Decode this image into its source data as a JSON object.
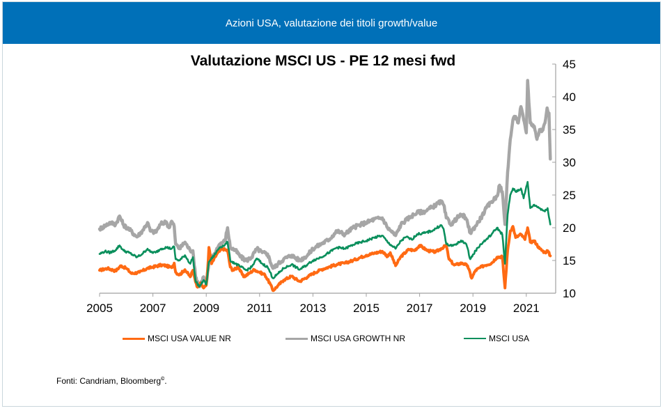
{
  "banner": {
    "title": "Azioni USA, valutazione dei titoli growth/value"
  },
  "source": {
    "text": "Fonti: Candriam, Bloomberg",
    "mark": "©",
    "suffix": "."
  },
  "chart_data": {
    "type": "line",
    "title": "Valutazione MSCI US - PE 12 mesi fwd",
    "xlabel": "",
    "ylabel": "",
    "xlim": [
      2005,
      2021.9
    ],
    "ylim": [
      10,
      45
    ],
    "x_ticks": [
      2005,
      2007,
      2009,
      2011,
      2013,
      2015,
      2017,
      2019,
      2021
    ],
    "y_ticks": [
      10,
      15,
      20,
      25,
      30,
      35,
      40,
      45
    ],
    "y_axis_side": "right",
    "grid": false,
    "legend_position": "bottom",
    "series": [
      {
        "name": "MSCI USA VALUE NR",
        "color": "#ff6a13",
        "points": [
          [
            2005.0,
            13.5
          ],
          [
            2005.3,
            13.8
          ],
          [
            2005.6,
            13.4
          ],
          [
            2005.8,
            14.2
          ],
          [
            2006.0,
            13.8
          ],
          [
            2006.2,
            13.0
          ],
          [
            2006.5,
            13.2
          ],
          [
            2006.8,
            13.8
          ],
          [
            2007.0,
            14.0
          ],
          [
            2007.3,
            14.3
          ],
          [
            2007.5,
            14.2
          ],
          [
            2007.7,
            13.9
          ],
          [
            2007.8,
            14.6
          ],
          [
            2007.85,
            13.2
          ],
          [
            2008.0,
            12.8
          ],
          [
            2008.2,
            13.6
          ],
          [
            2008.4,
            12.5
          ],
          [
            2008.5,
            13.5
          ],
          [
            2008.65,
            11.0
          ],
          [
            2008.8,
            11.5
          ],
          [
            2008.9,
            10.8
          ],
          [
            2009.0,
            11.2
          ],
          [
            2009.05,
            13.5
          ],
          [
            2009.1,
            17.0
          ],
          [
            2009.2,
            14.5
          ],
          [
            2009.4,
            16.0
          ],
          [
            2009.6,
            16.8
          ],
          [
            2009.8,
            16.5
          ],
          [
            2009.9,
            14.0
          ],
          [
            2010.0,
            13.5
          ],
          [
            2010.2,
            14.0
          ],
          [
            2010.4,
            12.5
          ],
          [
            2010.6,
            13.0
          ],
          [
            2010.8,
            13.6
          ],
          [
            2011.0,
            13.2
          ],
          [
            2011.2,
            12.8
          ],
          [
            2011.4,
            11.4
          ],
          [
            2011.5,
            10.4
          ],
          [
            2011.7,
            11.2
          ],
          [
            2011.9,
            12.0
          ],
          [
            2012.2,
            12.6
          ],
          [
            2012.5,
            11.8
          ],
          [
            2012.8,
            12.5
          ],
          [
            2013.0,
            13.0
          ],
          [
            2013.3,
            13.6
          ],
          [
            2013.6,
            14.0
          ],
          [
            2013.9,
            14.4
          ],
          [
            2014.2,
            14.6
          ],
          [
            2014.5,
            15.0
          ],
          [
            2014.8,
            15.5
          ],
          [
            2015.0,
            15.8
          ],
          [
            2015.3,
            16.1
          ],
          [
            2015.6,
            16.4
          ],
          [
            2015.8,
            15.6
          ],
          [
            2015.9,
            16.2
          ],
          [
            2016.1,
            14.2
          ],
          [
            2016.3,
            15.6
          ],
          [
            2016.6,
            16.7
          ],
          [
            2016.8,
            16.5
          ],
          [
            2017.0,
            17.3
          ],
          [
            2017.3,
            16.5
          ],
          [
            2017.6,
            16.3
          ],
          [
            2017.8,
            16.8
          ],
          [
            2018.0,
            17.3
          ],
          [
            2018.1,
            15.2
          ],
          [
            2018.3,
            14.3
          ],
          [
            2018.6,
            14.6
          ],
          [
            2018.8,
            14.2
          ],
          [
            2018.95,
            12.3
          ],
          [
            2019.1,
            13.5
          ],
          [
            2019.4,
            14.2
          ],
          [
            2019.7,
            14.6
          ],
          [
            2019.9,
            15.5
          ],
          [
            2020.1,
            15.6
          ],
          [
            2020.2,
            10.8
          ],
          [
            2020.3,
            16.5
          ],
          [
            2020.4,
            19.5
          ],
          [
            2020.5,
            20.2
          ],
          [
            2020.6,
            18.5
          ],
          [
            2020.8,
            19.0
          ],
          [
            2020.95,
            18.2
          ],
          [
            2021.05,
            20.0
          ],
          [
            2021.15,
            17.8
          ],
          [
            2021.3,
            18.0
          ],
          [
            2021.5,
            16.8
          ],
          [
            2021.7,
            16.2
          ],
          [
            2021.8,
            16.5
          ],
          [
            2021.9,
            15.7
          ]
        ]
      },
      {
        "name": "MSCI USA GROWTH NR",
        "color": "#a6a6a6",
        "points": [
          [
            2005.0,
            19.8
          ],
          [
            2005.2,
            20.3
          ],
          [
            2005.4,
            20.8
          ],
          [
            2005.6,
            20.5
          ],
          [
            2005.75,
            21.8
          ],
          [
            2005.9,
            20.4
          ],
          [
            2006.1,
            19.8
          ],
          [
            2006.4,
            18.6
          ],
          [
            2006.6,
            19.5
          ],
          [
            2006.8,
            20.8
          ],
          [
            2006.9,
            19.5
          ],
          [
            2007.1,
            19.3
          ],
          [
            2007.3,
            20.6
          ],
          [
            2007.5,
            20.9
          ],
          [
            2007.6,
            20.0
          ],
          [
            2007.7,
            21.0
          ],
          [
            2007.8,
            20.2
          ],
          [
            2007.85,
            17.5
          ],
          [
            2008.0,
            16.8
          ],
          [
            2008.2,
            17.8
          ],
          [
            2008.4,
            16.5
          ],
          [
            2008.5,
            16.5
          ],
          [
            2008.6,
            12.5
          ],
          [
            2008.75,
            11.0
          ],
          [
            2008.9,
            12.5
          ],
          [
            2009.0,
            11.5
          ],
          [
            2009.1,
            14.5
          ],
          [
            2009.3,
            16.0
          ],
          [
            2009.5,
            17.5
          ],
          [
            2009.7,
            18.0
          ],
          [
            2009.8,
            20.0
          ],
          [
            2009.9,
            17.0
          ],
          [
            2010.1,
            16.5
          ],
          [
            2010.3,
            15.5
          ],
          [
            2010.5,
            15.0
          ],
          [
            2010.7,
            15.5
          ],
          [
            2010.9,
            16.8
          ],
          [
            2011.1,
            16.2
          ],
          [
            2011.3,
            16.0
          ],
          [
            2011.5,
            13.8
          ],
          [
            2011.7,
            14.5
          ],
          [
            2011.9,
            15.2
          ],
          [
            2012.2,
            15.8
          ],
          [
            2012.5,
            15.0
          ],
          [
            2012.8,
            15.8
          ],
          [
            2013.0,
            16.8
          ],
          [
            2013.3,
            17.5
          ],
          [
            2013.6,
            18.2
          ],
          [
            2013.9,
            19.5
          ],
          [
            2014.2,
            19.0
          ],
          [
            2014.5,
            20.0
          ],
          [
            2014.8,
            20.5
          ],
          [
            2015.0,
            20.8
          ],
          [
            2015.3,
            21.3
          ],
          [
            2015.6,
            21.5
          ],
          [
            2015.8,
            20.0
          ],
          [
            2016.0,
            19.2
          ],
          [
            2016.1,
            18.8
          ],
          [
            2016.3,
            20.5
          ],
          [
            2016.5,
            21.2
          ],
          [
            2016.7,
            21.8
          ],
          [
            2016.9,
            22.3
          ],
          [
            2017.2,
            22.5
          ],
          [
            2017.5,
            23.2
          ],
          [
            2017.8,
            24.0
          ],
          [
            2017.9,
            23.5
          ],
          [
            2018.0,
            21.5
          ],
          [
            2018.2,
            20.5
          ],
          [
            2018.4,
            21.5
          ],
          [
            2018.6,
            22.0
          ],
          [
            2018.75,
            21.3
          ],
          [
            2018.9,
            19.2
          ],
          [
            2019.1,
            20.3
          ],
          [
            2019.3,
            21.5
          ],
          [
            2019.5,
            23.0
          ],
          [
            2019.7,
            24.0
          ],
          [
            2019.9,
            24.8
          ],
          [
            2020.0,
            26.5
          ],
          [
            2020.1,
            25.5
          ],
          [
            2020.2,
            20.5
          ],
          [
            2020.3,
            28.5
          ],
          [
            2020.4,
            33.5
          ],
          [
            2020.5,
            36.5
          ],
          [
            2020.6,
            37.0
          ],
          [
            2020.7,
            36.0
          ],
          [
            2020.8,
            38.5
          ],
          [
            2020.9,
            36.5
          ],
          [
            2021.0,
            34.5
          ],
          [
            2021.05,
            42.5
          ],
          [
            2021.15,
            36.0
          ],
          [
            2021.3,
            35.5
          ],
          [
            2021.4,
            33.5
          ],
          [
            2021.5,
            35.0
          ],
          [
            2021.6,
            34.8
          ],
          [
            2021.7,
            36.0
          ],
          [
            2021.78,
            38.3
          ],
          [
            2021.85,
            37.5
          ],
          [
            2021.9,
            30.5
          ]
        ]
      },
      {
        "name": "MSCI USA",
        "color": "#0a8f5c",
        "points": [
          [
            2005.0,
            16.0
          ],
          [
            2005.2,
            16.4
          ],
          [
            2005.4,
            16.2
          ],
          [
            2005.6,
            16.6
          ],
          [
            2005.75,
            17.3
          ],
          [
            2005.9,
            16.5
          ],
          [
            2006.1,
            16.2
          ],
          [
            2006.4,
            15.5
          ],
          [
            2006.6,
            16.0
          ],
          [
            2006.8,
            16.8
          ],
          [
            2006.9,
            16.3
          ],
          [
            2007.1,
            16.2
          ],
          [
            2007.3,
            16.8
          ],
          [
            2007.5,
            17.0
          ],
          [
            2007.7,
            16.8
          ],
          [
            2007.8,
            17.1
          ],
          [
            2007.85,
            15.2
          ],
          [
            2008.0,
            15.0
          ],
          [
            2008.2,
            15.8
          ],
          [
            2008.4,
            14.5
          ],
          [
            2008.5,
            15.5
          ],
          [
            2008.6,
            11.8
          ],
          [
            2008.75,
            11.0
          ],
          [
            2008.9,
            12.0
          ],
          [
            2009.0,
            11.3
          ],
          [
            2009.1,
            14.8
          ],
          [
            2009.3,
            15.8
          ],
          [
            2009.5,
            17.0
          ],
          [
            2009.7,
            17.4
          ],
          [
            2009.8,
            17.8
          ],
          [
            2009.9,
            15.0
          ],
          [
            2010.1,
            14.5
          ],
          [
            2010.3,
            14.0
          ],
          [
            2010.5,
            13.5
          ],
          [
            2010.7,
            14.0
          ],
          [
            2010.9,
            15.3
          ],
          [
            2011.1,
            14.5
          ],
          [
            2011.3,
            14.0
          ],
          [
            2011.5,
            12.3
          ],
          [
            2011.7,
            13.0
          ],
          [
            2011.9,
            13.8
          ],
          [
            2012.2,
            14.4
          ],
          [
            2012.5,
            13.6
          ],
          [
            2012.8,
            14.4
          ],
          [
            2013.0,
            15.0
          ],
          [
            2013.3,
            15.5
          ],
          [
            2013.6,
            16.2
          ],
          [
            2013.9,
            17.0
          ],
          [
            2014.2,
            16.8
          ],
          [
            2014.5,
            17.4
          ],
          [
            2014.8,
            17.8
          ],
          [
            2015.0,
            18.0
          ],
          [
            2015.3,
            18.5
          ],
          [
            2015.6,
            18.8
          ],
          [
            2015.8,
            17.8
          ],
          [
            2016.1,
            16.8
          ],
          [
            2016.3,
            18.0
          ],
          [
            2016.5,
            18.6
          ],
          [
            2016.7,
            18.2
          ],
          [
            2016.9,
            19.0
          ],
          [
            2017.2,
            19.2
          ],
          [
            2017.5,
            19.6
          ],
          [
            2017.8,
            20.4
          ],
          [
            2017.9,
            19.8
          ],
          [
            2018.0,
            17.5
          ],
          [
            2018.2,
            17.2
          ],
          [
            2018.4,
            17.6
          ],
          [
            2018.6,
            18.0
          ],
          [
            2018.75,
            17.5
          ],
          [
            2018.9,
            15.2
          ],
          [
            2019.1,
            16.5
          ],
          [
            2019.3,
            17.5
          ],
          [
            2019.5,
            18.2
          ],
          [
            2019.7,
            19.0
          ],
          [
            2019.9,
            20.0
          ],
          [
            2020.1,
            19.0
          ],
          [
            2020.2,
            14.5
          ],
          [
            2020.3,
            22.0
          ],
          [
            2020.4,
            25.0
          ],
          [
            2020.5,
            26.0
          ],
          [
            2020.6,
            25.5
          ],
          [
            2020.8,
            26.0
          ],
          [
            2020.9,
            24.5
          ],
          [
            2021.05,
            27.0
          ],
          [
            2021.15,
            23.0
          ],
          [
            2021.3,
            23.5
          ],
          [
            2021.5,
            23.0
          ],
          [
            2021.7,
            22.5
          ],
          [
            2021.8,
            23.0
          ],
          [
            2021.9,
            20.5
          ]
        ]
      }
    ]
  }
}
